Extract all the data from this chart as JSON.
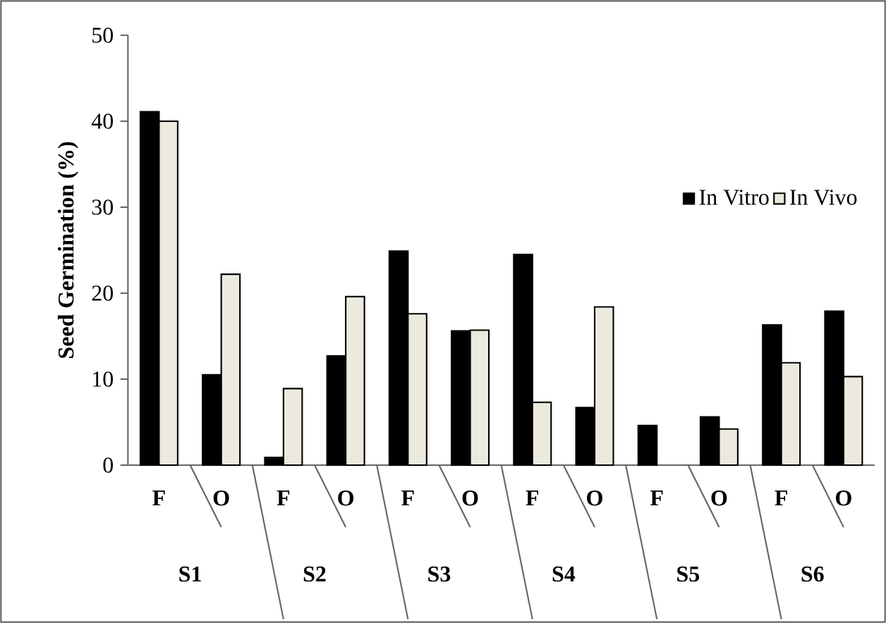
{
  "chart_data": {
    "type": "bar",
    "ylabel": "Seed Germination (%)",
    "categories": [
      "F",
      "O",
      "F",
      "O",
      "F",
      "O",
      "F",
      "O",
      "F",
      "O",
      "F",
      "O"
    ],
    "series": [
      {
        "name": "In Vitro",
        "color": "#000000",
        "values": [
          41.1,
          10.5,
          0.9,
          12.7,
          24.9,
          15.6,
          24.5,
          6.7,
          4.6,
          5.6,
          16.3,
          17.9
        ]
      },
      {
        "name": "In Vivo",
        "color": "#eceadf",
        "values": [
          40.0,
          22.2,
          8.9,
          19.6,
          17.6,
          15.7,
          7.3,
          18.4,
          null,
          4.2,
          11.9,
          10.3
        ]
      }
    ],
    "annotations": [
      "S1",
      "S2",
      "S3",
      "S4",
      "S5",
      "S6"
    ],
    "ylim": [
      0,
      50
    ],
    "yticks": [
      0,
      10,
      20,
      30,
      40,
      50
    ],
    "grid": false,
    "legend": "right"
  }
}
